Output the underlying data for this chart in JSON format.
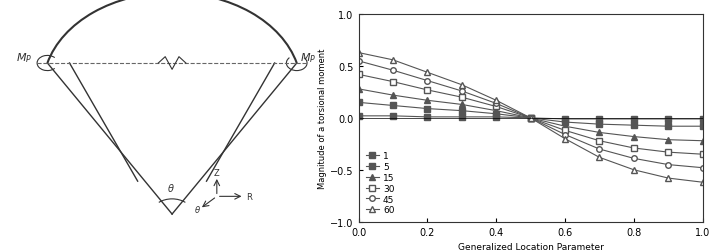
{
  "title": "",
  "xlabel": "Generalized Location Parameter",
  "ylabel": "Magnitude of a torsional moment",
  "xlim": [
    0.0,
    1.0
  ],
  "ylim": [
    -1.0,
    1.0
  ],
  "xticks": [
    0.0,
    0.2,
    0.4,
    0.6,
    0.8,
    1.0
  ],
  "yticks": [
    -1.0,
    -0.5,
    0.0,
    0.5,
    1.0
  ],
  "series": [
    {
      "label": "1",
      "marker": "s",
      "filled": true,
      "x": [
        0.0,
        0.1,
        0.2,
        0.3,
        0.4,
        0.5,
        0.6,
        0.7,
        0.8,
        0.9,
        1.0
      ],
      "y": [
        0.02,
        0.02,
        0.01,
        0.01,
        0.01,
        0.0,
        -0.01,
        -0.01,
        -0.01,
        -0.01,
        -0.01
      ]
    },
    {
      "label": "5",
      "marker": "s",
      "filled": true,
      "x": [
        0.0,
        0.1,
        0.2,
        0.3,
        0.4,
        0.5,
        0.6,
        0.7,
        0.8,
        0.9,
        1.0
      ],
      "y": [
        0.15,
        0.12,
        0.09,
        0.07,
        0.04,
        0.0,
        -0.04,
        -0.06,
        -0.07,
        -0.08,
        -0.08
      ]
    },
    {
      "label": "15",
      "marker": "^",
      "filled": true,
      "x": [
        0.0,
        0.1,
        0.2,
        0.3,
        0.4,
        0.5,
        0.6,
        0.7,
        0.8,
        0.9,
        1.0
      ],
      "y": [
        0.28,
        0.22,
        0.17,
        0.13,
        0.07,
        0.0,
        -0.08,
        -0.14,
        -0.18,
        -0.21,
        -0.22
      ]
    },
    {
      "label": "30",
      "marker": "s",
      "filled": false,
      "x": [
        0.0,
        0.1,
        0.2,
        0.3,
        0.4,
        0.5,
        0.6,
        0.7,
        0.8,
        0.9,
        1.0
      ],
      "y": [
        0.42,
        0.35,
        0.27,
        0.2,
        0.11,
        0.0,
        -0.12,
        -0.22,
        -0.29,
        -0.33,
        -0.35
      ]
    },
    {
      "label": "45",
      "marker": "o",
      "filled": false,
      "x": [
        0.0,
        0.1,
        0.2,
        0.3,
        0.4,
        0.5,
        0.6,
        0.7,
        0.8,
        0.9,
        1.0
      ],
      "y": [
        0.55,
        0.46,
        0.36,
        0.26,
        0.14,
        0.0,
        -0.16,
        -0.3,
        -0.39,
        -0.45,
        -0.48
      ]
    },
    {
      "label": "60",
      "marker": "^",
      "filled": false,
      "x": [
        0.0,
        0.1,
        0.2,
        0.3,
        0.4,
        0.5,
        0.6,
        0.7,
        0.8,
        0.9,
        1.0
      ],
      "y": [
        0.63,
        0.56,
        0.44,
        0.32,
        0.17,
        0.0,
        -0.2,
        -0.38,
        -0.5,
        -0.58,
        -0.62
      ]
    }
  ],
  "color": "#555555",
  "linewidth": 0.8,
  "markersize": 4,
  "legend_loc": "lower left",
  "legend_fontsize": 6.5
}
